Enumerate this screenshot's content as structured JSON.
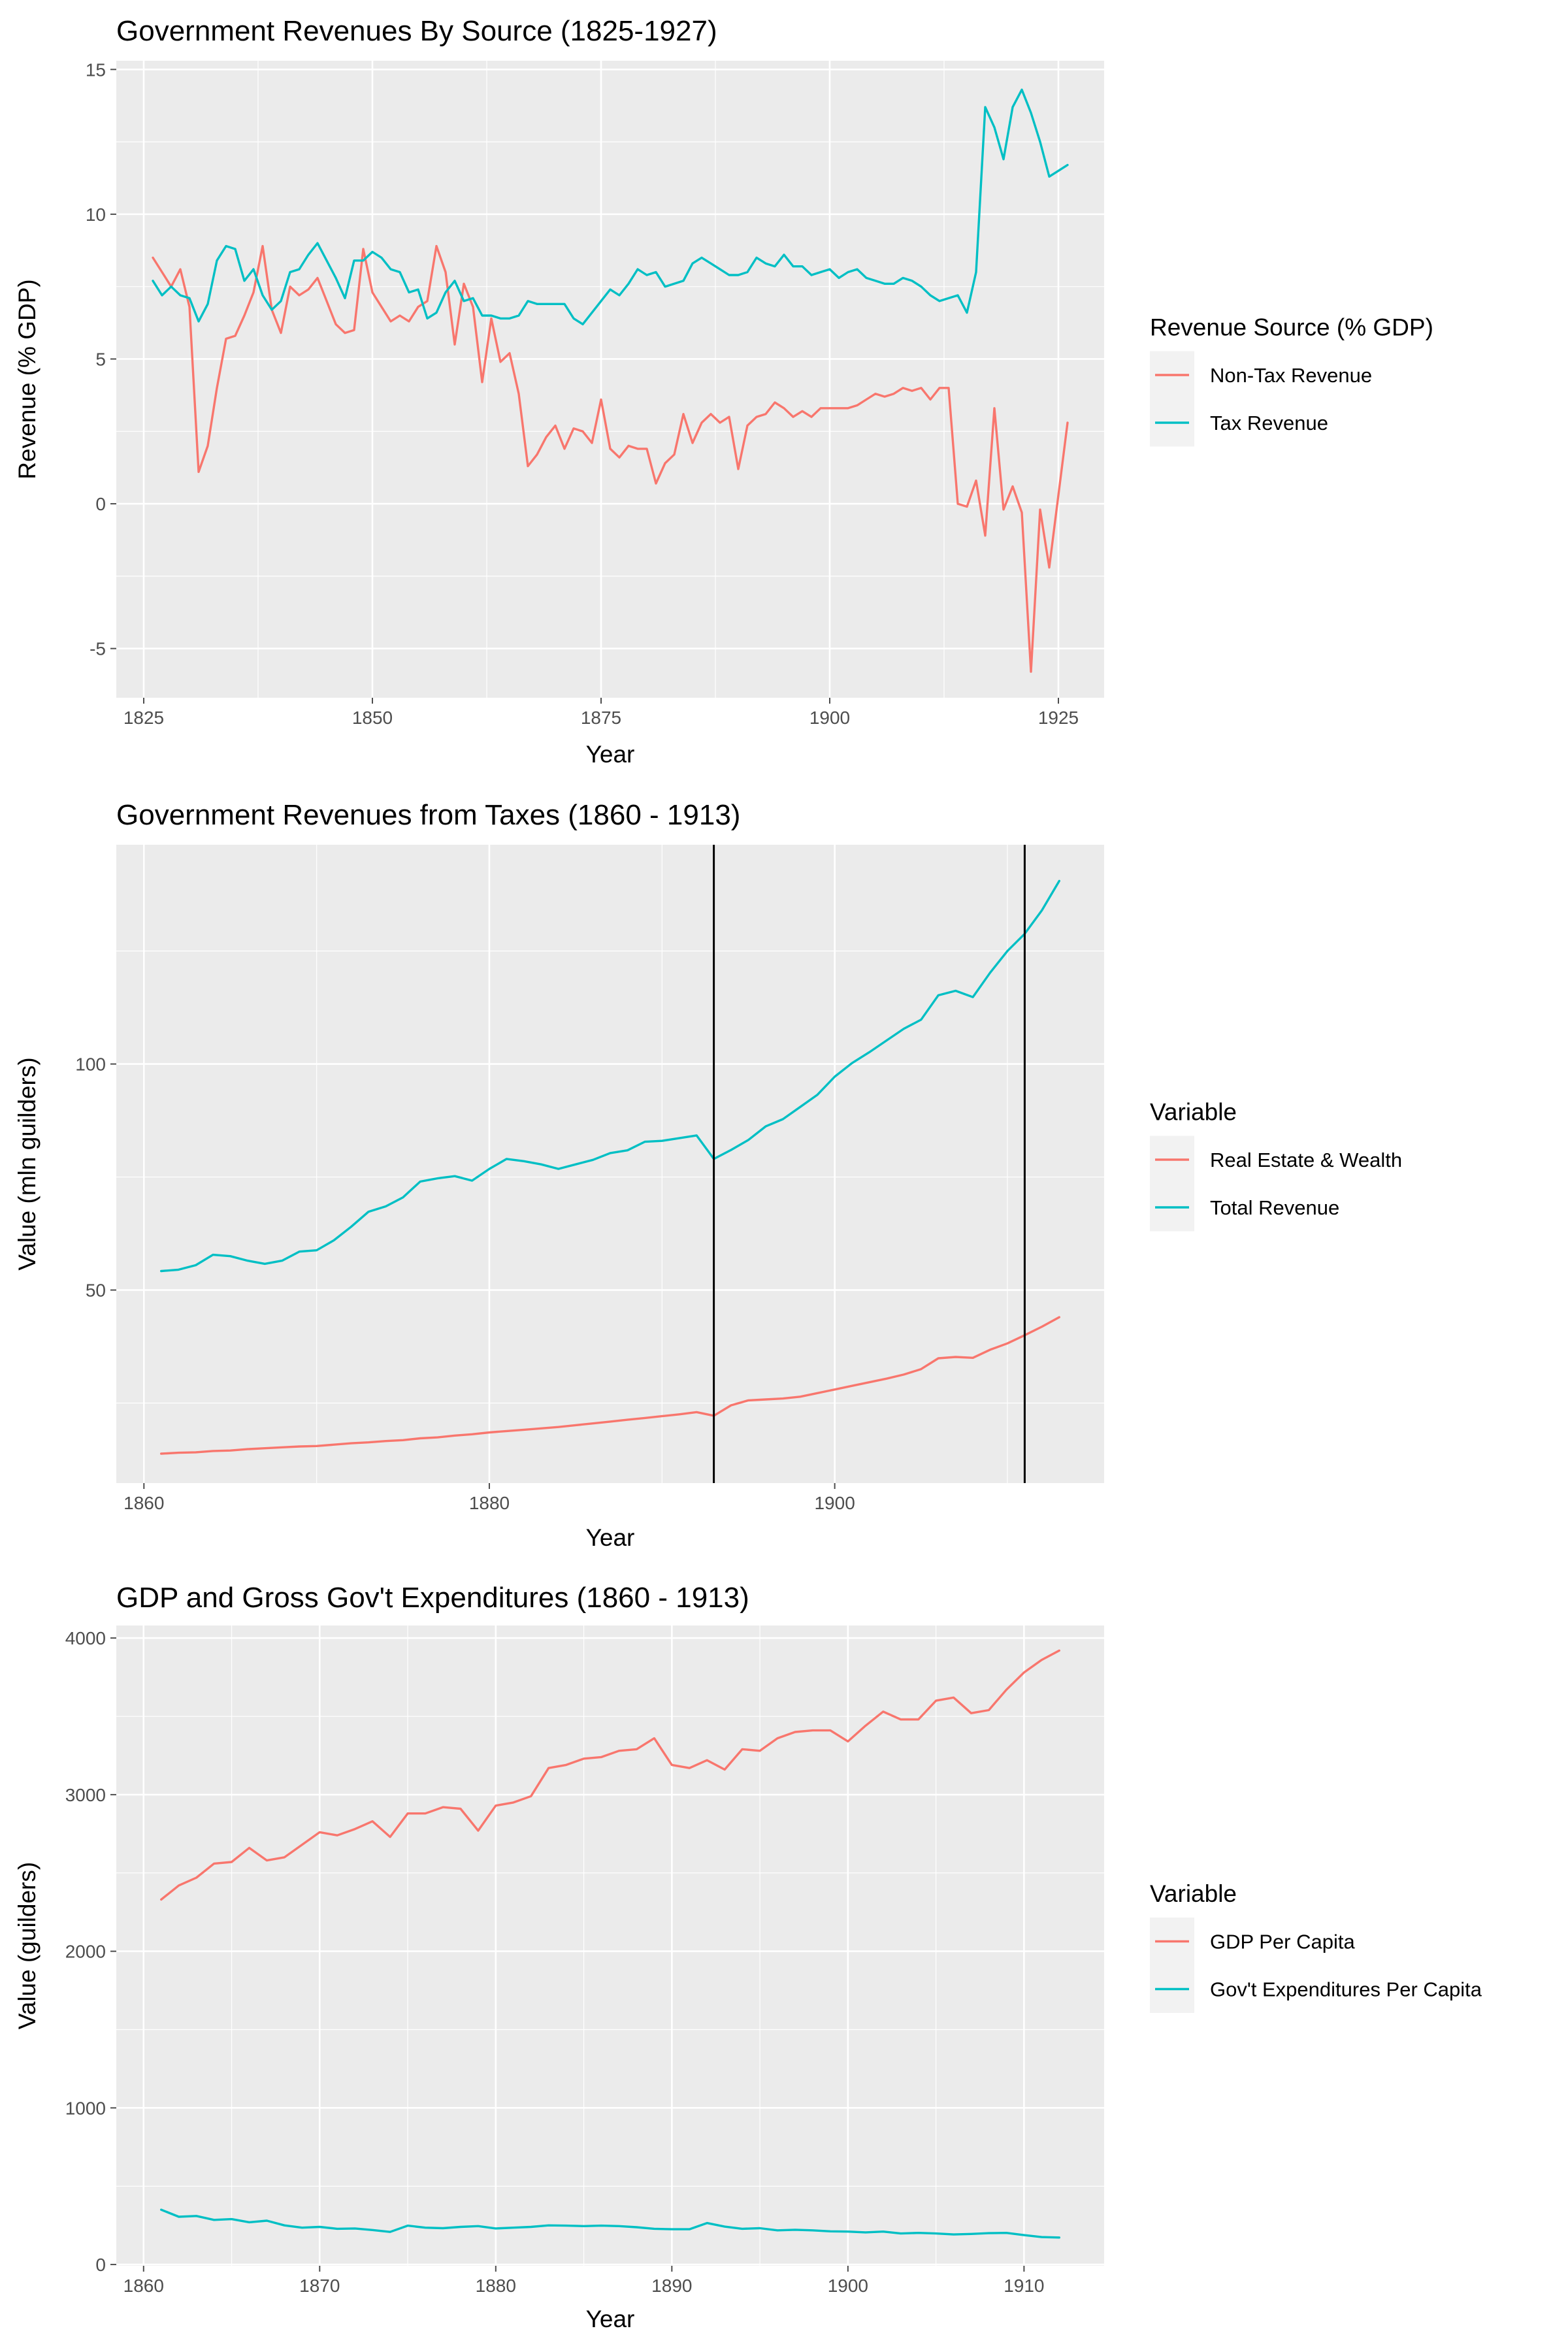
{
  "chart_data": [
    {
      "type": "line",
      "title": "Government Revenues By Source (1825-1927)",
      "xlabel": "Year",
      "ylabel": "Revenue (% GDP)",
      "xlim": [
        1822,
        1930
      ],
      "ylim": [
        -6.7,
        15.3
      ],
      "xticks": [
        1825,
        1850,
        1875,
        1900,
        1925
      ],
      "yticks": [
        -5,
        0,
        5,
        10,
        15
      ],
      "grid": true,
      "legend": {
        "title": "Revenue Source (% GDP)",
        "placement": "right"
      },
      "series": [
        {
          "name": "Non-Tax Revenue",
          "color": "#F8766D",
          "x": [
            1826,
            1827,
            1828,
            1829,
            1830,
            1831,
            1832,
            1833,
            1834,
            1835,
            1836,
            1837,
            1838,
            1839,
            1840,
            1841,
            1842,
            1843,
            1844,
            1845,
            1846,
            1847,
            1848,
            1849,
            1850,
            1851,
            1852,
            1853,
            1854,
            1855,
            1856,
            1857,
            1858,
            1859,
            1860,
            1861,
            1862,
            1863,
            1864,
            1865,
            1866,
            1867,
            1868,
            1869,
            1870,
            1871,
            1872,
            1873,
            1874,
            1875,
            1876,
            1877,
            1878,
            1879,
            1880,
            1881,
            1882,
            1883,
            1884,
            1885,
            1886,
            1887,
            1888,
            1889,
            1890,
            1891,
            1892,
            1893,
            1894,
            1895,
            1896,
            1897,
            1898,
            1899,
            1900,
            1901,
            1902,
            1903,
            1904,
            1905,
            1906,
            1907,
            1908,
            1909,
            1910,
            1911,
            1912,
            1913,
            1914,
            1915,
            1916,
            1917,
            1918,
            1919,
            1920,
            1921,
            1922,
            1923,
            1924,
            1925,
            1926
          ],
          "y": [
            8.5,
            8.0,
            7.5,
            8.1,
            6.8,
            1.1,
            2.0,
            4.0,
            5.7,
            5.8,
            6.5,
            7.3,
            8.9,
            6.7,
            5.9,
            7.5,
            7.2,
            7.4,
            7.8,
            7.0,
            6.2,
            5.9,
            6.0,
            8.8,
            7.3,
            6.8,
            6.3,
            6.5,
            6.3,
            6.8,
            7.0,
            8.9,
            8.0,
            5.5,
            7.6,
            6.8,
            4.2,
            6.4,
            4.9,
            5.2,
            3.8,
            1.3,
            1.7,
            2.3,
            2.7,
            1.9,
            2.6,
            2.5,
            2.1,
            3.6,
            1.9,
            1.6,
            2.0,
            1.9,
            1.9,
            0.7,
            1.4,
            1.7,
            3.1,
            2.1,
            2.8,
            3.1,
            2.8,
            3.0,
            1.2,
            2.7,
            3.0,
            3.1,
            3.5,
            3.3,
            3.0,
            3.2,
            3.0,
            3.3,
            3.3,
            3.3,
            3.3,
            3.4,
            3.6,
            3.8,
            3.7,
            3.8,
            4.0,
            3.9,
            4.0,
            3.6,
            4.0,
            4.0,
            0.0,
            -0.1,
            0.8,
            -1.1,
            3.3,
            -0.2,
            0.6,
            -0.3,
            -5.8,
            -0.2,
            -2.2,
            0.3,
            2.8
          ]
        },
        {
          "name": "Tax Revenue",
          "color": "#00BFC4",
          "x": [
            1826,
            1827,
            1828,
            1829,
            1830,
            1831,
            1832,
            1833,
            1834,
            1835,
            1836,
            1837,
            1838,
            1839,
            1840,
            1841,
            1842,
            1843,
            1844,
            1845,
            1846,
            1847,
            1848,
            1849,
            1850,
            1851,
            1852,
            1853,
            1854,
            1855,
            1856,
            1857,
            1858,
            1859,
            1860,
            1861,
            1862,
            1863,
            1864,
            1865,
            1866,
            1867,
            1868,
            1869,
            1870,
            1871,
            1872,
            1873,
            1874,
            1875,
            1876,
            1877,
            1878,
            1879,
            1880,
            1881,
            1882,
            1883,
            1884,
            1885,
            1886,
            1887,
            1888,
            1889,
            1890,
            1891,
            1892,
            1893,
            1894,
            1895,
            1896,
            1897,
            1898,
            1899,
            1900,
            1901,
            1902,
            1903,
            1904,
            1905,
            1906,
            1907,
            1908,
            1909,
            1910,
            1911,
            1912,
            1913,
            1914,
            1915,
            1916,
            1917,
            1918,
            1919,
            1920,
            1921,
            1922,
            1923,
            1924,
            1925,
            1926
          ],
          "y": [
            7.7,
            7.2,
            7.5,
            7.2,
            7.1,
            6.3,
            6.9,
            8.4,
            8.9,
            8.8,
            7.7,
            8.1,
            7.2,
            6.7,
            7.0,
            8.0,
            8.1,
            8.6,
            9.0,
            8.4,
            7.8,
            7.1,
            8.4,
            8.4,
            8.7,
            8.5,
            8.1,
            8.0,
            7.3,
            7.4,
            6.4,
            6.6,
            7.3,
            7.7,
            7.0,
            7.1,
            6.5,
            6.5,
            6.4,
            6.4,
            6.5,
            7.0,
            6.9,
            6.9,
            6.9,
            6.9,
            6.4,
            6.2,
            6.6,
            7.0,
            7.4,
            7.2,
            7.6,
            8.1,
            7.9,
            8.0,
            7.5,
            7.6,
            7.7,
            8.3,
            8.5,
            8.3,
            8.1,
            7.9,
            7.9,
            8.0,
            8.5,
            8.3,
            8.2,
            8.6,
            8.2,
            8.2,
            7.9,
            8.0,
            8.1,
            7.8,
            8.0,
            8.1,
            7.8,
            7.7,
            7.6,
            7.6,
            7.8,
            7.7,
            7.5,
            7.2,
            7.0,
            7.1,
            7.2,
            6.6,
            8.0,
            13.7,
            13.0,
            11.9,
            13.7,
            14.3,
            13.5,
            12.5,
            11.3,
            11.5,
            11.7
          ]
        }
      ]
    },
    {
      "type": "line",
      "title": "Government Revenues from Taxes (1860 - 1913)",
      "xlabel": "Year",
      "ylabel": "Value (mln guilders)",
      "xlim": [
        1858.4,
        1915.6
      ],
      "ylim": [
        7.3,
        148.5
      ],
      "xticks": [
        1860,
        1880,
        1900
      ],
      "yticks": [
        50,
        100
      ],
      "grid": true,
      "vlines": [
        1893,
        1911
      ],
      "legend": {
        "title": "Variable",
        "placement": "right"
      },
      "series": [
        {
          "name": "Real Estate & Wealth",
          "color": "#F8766D",
          "x": [
            1861,
            1862,
            1863,
            1864,
            1865,
            1866,
            1867,
            1868,
            1869,
            1870,
            1871,
            1872,
            1873,
            1874,
            1875,
            1876,
            1877,
            1878,
            1879,
            1880,
            1881,
            1882,
            1883,
            1884,
            1885,
            1886,
            1887,
            1888,
            1889,
            1890,
            1891,
            1892,
            1893,
            1894,
            1895,
            1896,
            1897,
            1898,
            1899,
            1900,
            1901,
            1902,
            1903,
            1904,
            1905,
            1906,
            1907,
            1908,
            1909,
            1910,
            1911,
            1912,
            1913
          ],
          "y": [
            13.8,
            14.0,
            14.1,
            14.4,
            14.5,
            14.8,
            15.0,
            15.2,
            15.4,
            15.5,
            15.8,
            16.1,
            16.3,
            16.6,
            16.8,
            17.2,
            17.4,
            17.8,
            18.1,
            18.5,
            18.8,
            19.1,
            19.4,
            19.7,
            20.1,
            20.5,
            20.9,
            21.3,
            21.7,
            22.1,
            22.5,
            23.0,
            22.2,
            24.5,
            25.6,
            25.8,
            26.0,
            26.4,
            27.2,
            28.0,
            28.8,
            29.6,
            30.4,
            31.3,
            32.5,
            34.9,
            35.2,
            35.0,
            36.8,
            38.2,
            40.0,
            41.9,
            44.0
          ]
        },
        {
          "name": "Total Revenue",
          "color": "#00BFC4",
          "x": [
            1861,
            1862,
            1863,
            1864,
            1865,
            1866,
            1867,
            1868,
            1869,
            1870,
            1871,
            1872,
            1873,
            1874,
            1875,
            1876,
            1877,
            1878,
            1879,
            1880,
            1881,
            1882,
            1883,
            1884,
            1885,
            1886,
            1887,
            1888,
            1889,
            1890,
            1891,
            1892,
            1893,
            1894,
            1895,
            1896,
            1897,
            1898,
            1899,
            1900,
            1901,
            1902,
            1903,
            1904,
            1905,
            1906,
            1907,
            1908,
            1909,
            1910,
            1911,
            1912,
            1913
          ],
          "y": [
            54.2,
            54.5,
            55.5,
            57.8,
            57.5,
            56.5,
            55.8,
            56.5,
            58.5,
            58.8,
            61.0,
            64.0,
            67.3,
            68.5,
            70.5,
            74.0,
            74.7,
            75.2,
            74.2,
            76.8,
            79.0,
            78.5,
            77.8,
            76.8,
            77.8,
            78.8,
            80.3,
            80.9,
            82.8,
            83.0,
            83.6,
            84.2,
            79.0,
            81.0,
            83.2,
            86.2,
            87.8,
            90.5,
            93.2,
            97.2,
            100.2,
            102.6,
            105.2,
            107.8,
            109.8,
            115.2,
            116.2,
            114.8,
            120.2,
            125.0,
            128.8,
            134.0,
            140.5
          ]
        }
      ]
    },
    {
      "type": "line",
      "title": "GDP and Gross Gov't Expenditures (1860 - 1913)",
      "xlabel": "Year",
      "ylabel": "Value (guilders)",
      "xlim": [
        1858.45,
        1914.55
      ],
      "ylim": [
        -8,
        4080
      ],
      "xticks": [
        1860,
        1870,
        1880,
        1890,
        1900,
        1910
      ],
      "yticks": [
        0,
        1000,
        2000,
        3000,
        4000
      ],
      "grid": true,
      "legend": {
        "title": "Variable",
        "placement": "right"
      },
      "series": [
        {
          "name": "GDP Per Capita",
          "color": "#F8766D",
          "x": [
            1861,
            1862,
            1863,
            1864,
            1865,
            1866,
            1867,
            1868,
            1869,
            1870,
            1871,
            1872,
            1873,
            1874,
            1875,
            1876,
            1877,
            1878,
            1879,
            1880,
            1881,
            1882,
            1883,
            1884,
            1885,
            1886,
            1887,
            1888,
            1889,
            1890,
            1891,
            1892,
            1893,
            1894,
            1895,
            1896,
            1897,
            1898,
            1899,
            1900,
            1901,
            1902,
            1903,
            1904,
            1905,
            1906,
            1907,
            1908,
            1909,
            1910,
            1911,
            1912
          ],
          "y": [
            2330,
            2420,
            2470,
            2560,
            2570,
            2660,
            2580,
            2600,
            2680,
            2760,
            2740,
            2780,
            2830,
            2730,
            2880,
            2880,
            2920,
            2910,
            2770,
            2930,
            2950,
            2990,
            3170,
            3190,
            3230,
            3240,
            3280,
            3290,
            3360,
            3190,
            3170,
            3220,
            3160,
            3290,
            3280,
            3360,
            3400,
            3410,
            3410,
            3340,
            3440,
            3530,
            3480,
            3480,
            3600,
            3620,
            3520,
            3540,
            3670,
            3780,
            3860,
            3920
          ]
        },
        {
          "name": "Gov't Expenditures Per Capita",
          "color": "#00BFC4",
          "x": [
            1861,
            1862,
            1863,
            1864,
            1865,
            1866,
            1867,
            1868,
            1869,
            1870,
            1871,
            1872,
            1873,
            1874,
            1875,
            1876,
            1877,
            1878,
            1879,
            1880,
            1881,
            1882,
            1883,
            1884,
            1885,
            1886,
            1887,
            1888,
            1889,
            1890,
            1891,
            1892,
            1893,
            1894,
            1895,
            1896,
            1897,
            1898,
            1899,
            1900,
            1901,
            1902,
            1903,
            1904,
            1905,
            1906,
            1907,
            1908,
            1909,
            1910,
            1911,
            1912
          ],
          "y": [
            350,
            305,
            310,
            285,
            290,
            270,
            280,
            250,
            235,
            240,
            228,
            230,
            220,
            208,
            248,
            235,
            232,
            240,
            245,
            230,
            235,
            240,
            250,
            248,
            245,
            248,
            245,
            238,
            228,
            225,
            225,
            265,
            242,
            228,
            232,
            218,
            222,
            218,
            212,
            210,
            205,
            210,
            198,
            202,
            198,
            192,
            195,
            200,
            202,
            188,
            175,
            172
          ]
        }
      ]
    }
  ]
}
